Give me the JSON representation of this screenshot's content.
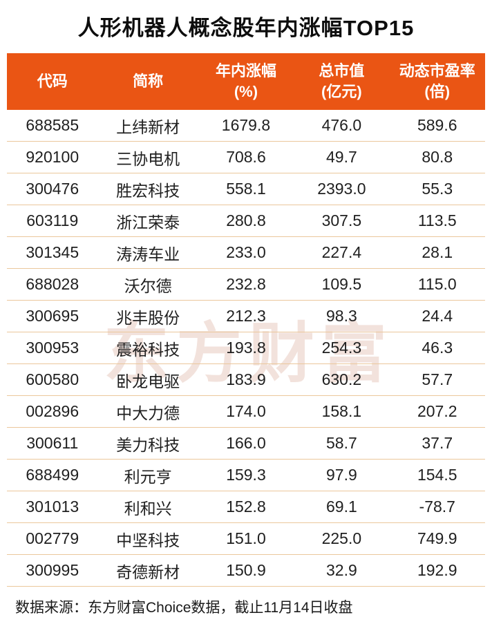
{
  "title": "人形机器人概念股年内涨幅TOP15",
  "watermark": "东方财富",
  "table": {
    "columns": [
      {
        "label": "代码",
        "sub": ""
      },
      {
        "label": "简称",
        "sub": ""
      },
      {
        "label": "年内涨幅",
        "sub": "(%)"
      },
      {
        "label": "总市值",
        "sub": "(亿元)"
      },
      {
        "label": "动态市盈率",
        "sub": "(倍)"
      }
    ],
    "rows": [
      [
        "688585",
        "上纬新材",
        "1679.8",
        "476.0",
        "589.6"
      ],
      [
        "920100",
        "三协电机",
        "708.6",
        "49.7",
        "80.8"
      ],
      [
        "300476",
        "胜宏科技",
        "558.1",
        "2393.0",
        "55.3"
      ],
      [
        "603119",
        "浙江荣泰",
        "280.8",
        "307.5",
        "113.5"
      ],
      [
        "301345",
        "涛涛车业",
        "233.0",
        "227.4",
        "28.1"
      ],
      [
        "688028",
        "沃尔德",
        "232.8",
        "109.5",
        "115.0"
      ],
      [
        "300695",
        "兆丰股份",
        "212.3",
        "98.3",
        "24.4"
      ],
      [
        "300953",
        "震裕科技",
        "193.8",
        "254.3",
        "46.3"
      ],
      [
        "600580",
        "卧龙电驱",
        "183.9",
        "630.2",
        "57.7"
      ],
      [
        "002896",
        "中大力德",
        "174.0",
        "158.1",
        "207.2"
      ],
      [
        "300611",
        "美力科技",
        "166.0",
        "58.7",
        "37.7"
      ],
      [
        "688499",
        "利元亨",
        "159.3",
        "97.9",
        "154.5"
      ],
      [
        "301013",
        "利和兴",
        "152.8",
        "69.1",
        "-78.7"
      ],
      [
        "002779",
        "中坚科技",
        "151.0",
        "225.0",
        "749.9"
      ],
      [
        "300995",
        "奇德新材",
        "150.9",
        "32.9",
        "192.9"
      ]
    ]
  },
  "footer": "数据来源：东方财富Choice数据，截止11月14日收盘",
  "colors": {
    "header_bg": "#EA5514",
    "separator": "#EBC79B",
    "text": "#1F1F1F",
    "watermark": "#F2E2DC"
  },
  "chart_data": {
    "type": "table",
    "title": "人形机器人概念股年内涨幅TOP15",
    "categories": [
      "代码",
      "简称",
      "年内涨幅(%)",
      "总市值(亿元)",
      "动态市盈率(倍)"
    ],
    "series": [
      {
        "name": "年内涨幅(%)",
        "values": [
          1679.8,
          708.6,
          558.1,
          280.8,
          233.0,
          232.8,
          212.3,
          193.8,
          183.9,
          174.0,
          166.0,
          159.3,
          152.8,
          151.0,
          150.9
        ]
      },
      {
        "name": "总市值(亿元)",
        "values": [
          476.0,
          49.7,
          2393.0,
          307.5,
          227.4,
          109.5,
          98.3,
          254.3,
          630.2,
          158.1,
          58.7,
          97.9,
          69.1,
          225.0,
          32.9
        ]
      },
      {
        "name": "动态市盈率(倍)",
        "values": [
          589.6,
          80.8,
          55.3,
          113.5,
          28.1,
          115.0,
          24.4,
          46.3,
          57.7,
          207.2,
          37.7,
          154.5,
          -78.7,
          749.9,
          192.9
        ]
      }
    ]
  }
}
